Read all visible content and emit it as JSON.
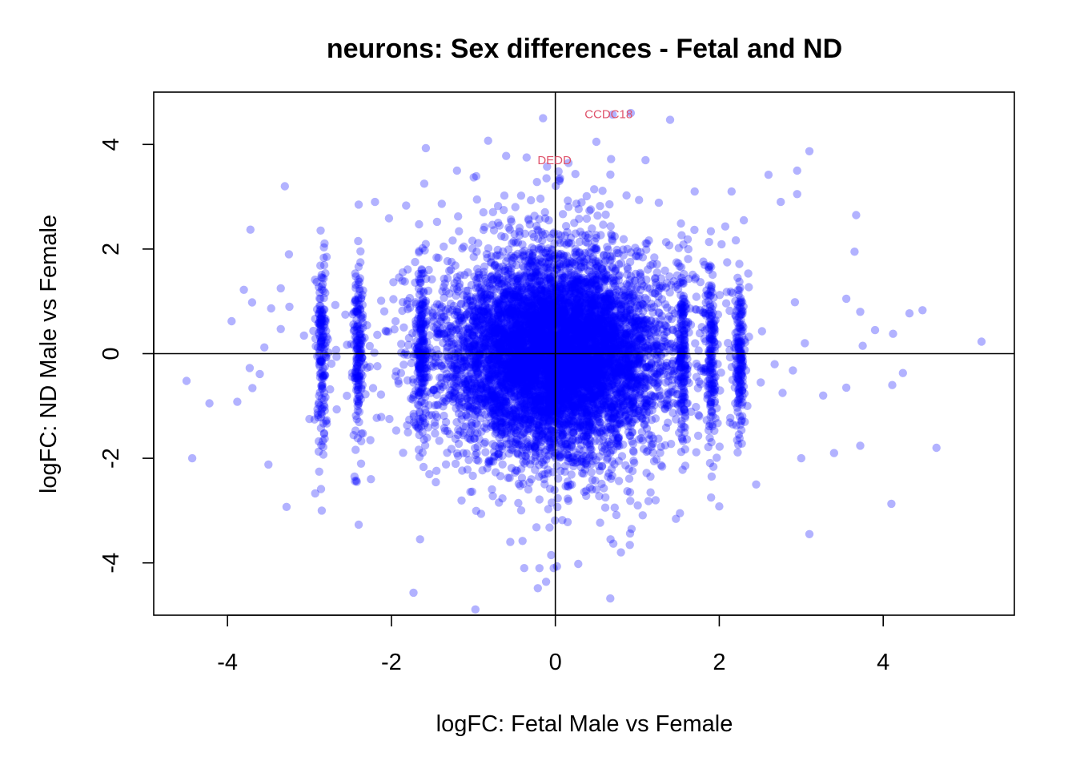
{
  "chart_data": {
    "type": "scatter",
    "title": "neurons: Sex differences - Fetal and ND",
    "xlabel": "logFC: Fetal Male vs Female",
    "ylabel": "logFC: ND Male vs Female",
    "xlim": [
      -4.9,
      5.6
    ],
    "ylim": [
      -5.0,
      5.0
    ],
    "x_ticks": [
      -4,
      -2,
      0,
      2,
      4
    ],
    "y_ticks": [
      -4,
      -2,
      0,
      2,
      4
    ],
    "grid": false,
    "reference_lines": {
      "x": 0,
      "y": 0
    },
    "point_color": "#0000FF",
    "point_alpha": 0.3,
    "annotation_color": "#DF536B",
    "outlier_points": [
      {
        "x": 5.2,
        "y": 0.23
      },
      {
        "x": 4.65,
        "y": -1.8
      },
      {
        "x": 4.1,
        "y": -2.87
      },
      {
        "x": 4.48,
        "y": 0.83
      },
      {
        "x": 4.32,
        "y": 0.77
      },
      {
        "x": 4.12,
        "y": 0.38
      },
      {
        "x": 4.24,
        "y": -0.37
      },
      {
        "x": 4.11,
        "y": -0.6
      },
      {
        "x": 3.67,
        "y": 2.65
      },
      {
        "x": 3.65,
        "y": 1.95
      },
      {
        "x": 3.1,
        "y": 3.87
      },
      {
        "x": 3.1,
        "y": -3.45
      },
      {
        "x": 2.95,
        "y": 3.5
      },
      {
        "x": 2.95,
        "y": 3.05
      },
      {
        "x": 3.72,
        "y": -1.76
      },
      {
        "x": 3.72,
        "y": 0.8
      },
      {
        "x": 3.75,
        "y": 0.15
      },
      {
        "x": 3.4,
        "y": -1.9
      },
      {
        "x": 3.0,
        "y": -2.0
      },
      {
        "x": 2.45,
        "y": -2.5
      },
      {
        "x": 2.6,
        "y": 3.42
      },
      {
        "x": 1.4,
        "y": 4.47
      },
      {
        "x": 0.92,
        "y": 4.6
      },
      {
        "x": 0.7,
        "y": 4.57
      },
      {
        "x": 0.68,
        "y": 3.72
      },
      {
        "x": 0.05,
        "y": 3.3
      },
      {
        "x": -0.15,
        "y": 4.5
      },
      {
        "x": -0.35,
        "y": 3.75
      },
      {
        "x": -0.82,
        "y": 4.07
      },
      {
        "x": -1.58,
        "y": 3.93
      },
      {
        "x": -1.6,
        "y": 3.25
      },
      {
        "x": -3.3,
        "y": 3.2
      },
      {
        "x": -3.72,
        "y": 2.37
      },
      {
        "x": -3.25,
        "y": 1.9
      },
      {
        "x": -3.35,
        "y": 1.25
      },
      {
        "x": -3.8,
        "y": 1.22
      },
      {
        "x": -3.95,
        "y": 0.62
      },
      {
        "x": -3.35,
        "y": 0.47
      },
      {
        "x": -4.5,
        "y": -0.52
      },
      {
        "x": -4.22,
        "y": -0.95
      },
      {
        "x": -3.88,
        "y": -0.92
      },
      {
        "x": -4.43,
        "y": -2.0
      },
      {
        "x": -3.5,
        "y": -2.12
      },
      {
        "x": -3.28,
        "y": -2.93
      },
      {
        "x": -2.93,
        "y": -2.67
      },
      {
        "x": -2.85,
        "y": -3.0
      },
      {
        "x": -2.4,
        "y": -3.27
      },
      {
        "x": -1.73,
        "y": -4.57
      },
      {
        "x": -0.38,
        "y": -4.1
      },
      {
        "x": -0.02,
        "y": -4.1
      },
      {
        "x": 0.28,
        "y": -4.02
      },
      {
        "x": 0.67,
        "y": -4.68
      },
      {
        "x": -0.05,
        "y": -3.85
      },
      {
        "x": -0.55,
        "y": -3.6
      },
      {
        "x": -1.65,
        "y": -3.55
      },
      {
        "x": 0.93,
        "y": -3.35
      },
      {
        "x": 1.52,
        "y": -3.05
      },
      {
        "x": 1.9,
        "y": -2.75
      },
      {
        "x": 2.0,
        "y": -2.92
      },
      {
        "x": -0.23,
        "y": -3.32
      },
      {
        "x": 0.15,
        "y": -3.22
      },
      {
        "x": 0.5,
        "y": 4.05
      },
      {
        "x": 1.7,
        "y": 3.1
      },
      {
        "x": 2.15,
        "y": 3.1
      },
      {
        "x": -2.2,
        "y": 2.9
      },
      {
        "x": -2.4,
        "y": 2.85
      },
      {
        "x": -1.2,
        "y": 3.5
      },
      {
        "x": -0.4,
        "y": -3.58
      },
      {
        "x": 0.8,
        "y": -3.8
      },
      {
        "x": -3.0,
        "y": -1.25
      },
      {
        "x": -3.7,
        "y": 0.98
      },
      {
        "x": -3.55,
        "y": 0.12
      },
      {
        "x": 3.9,
        "y": 0.45
      },
      {
        "x": 3.55,
        "y": -0.65
      },
      {
        "x": 3.55,
        "y": 1.05
      },
      {
        "x": 2.75,
        "y": 2.9
      },
      {
        "x": 1.1,
        "y": 3.7
      },
      {
        "x": -0.6,
        "y": 3.78
      },
      {
        "x": -2.25,
        "y": -2.4
      },
      {
        "x": 2.3,
        "y": 2.55
      }
    ],
    "bulk": {
      "n_points": 9000,
      "center": [
        0.0,
        0.0
      ],
      "x_sd": 0.62,
      "y_sd": 0.9,
      "bands_x": [
        -2.4,
        -1.63,
        1.55,
        1.9,
        -2.85,
        2.25
      ]
    },
    "annotations": [
      {
        "text": "CCDC18",
        "x": 0.65,
        "y": 4.58
      },
      {
        "text": "DEDD",
        "x": -0.01,
        "y": 3.7
      }
    ]
  }
}
